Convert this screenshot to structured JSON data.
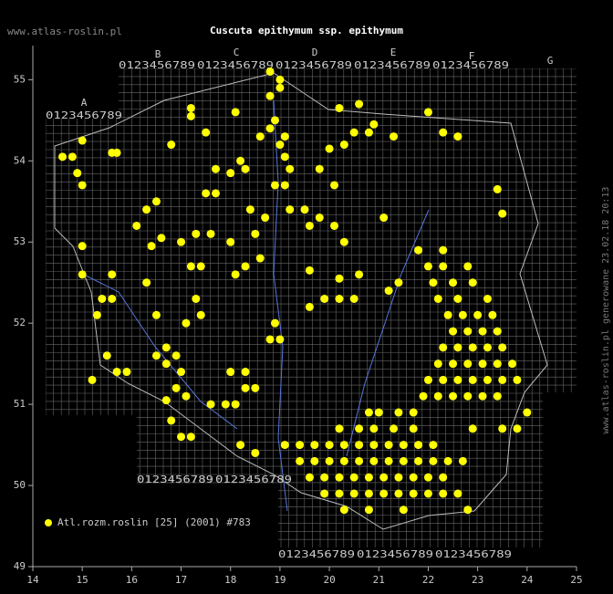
{
  "chart_data": {
    "type": "scatter",
    "title": "Cuscuta epithymum ssp. epithymum",
    "site": "www.atlas-roslin.pl",
    "footer": "www.atlas-roslin.pl generowane 23.02.18 20:13",
    "xlim": [
      14,
      25
    ],
    "ylim": [
      49,
      55.42
    ],
    "xticks": [
      14,
      15,
      16,
      17,
      18,
      19,
      20,
      21,
      22,
      23,
      24,
      25
    ],
    "yticks": [
      49,
      50,
      51,
      52,
      53,
      54,
      55
    ],
    "grid_letters": [
      "A",
      "B",
      "C",
      "D",
      "E",
      "F",
      "G"
    ],
    "grid_digits": "0123456789",
    "x": [
      14.6,
      14.8,
      15.0,
      14.9,
      15.0,
      15.6,
      15.7,
      16.8,
      17.2,
      17.2,
      17.5,
      18.1,
      18.2,
      18.6,
      18.8,
      18.9,
      19.0,
      19.1,
      18.8,
      19.0,
      19.0,
      18.8,
      20.2,
      20.6,
      20.5,
      20.8,
      20.9,
      21.3,
      20.3,
      20.0,
      19.8,
      20.1,
      19.2,
      19.1,
      18.3,
      18.0,
      17.7,
      17.5,
      17.7,
      18.4,
      18.7,
      18.9,
      19.1,
      19.2,
      19.5,
      19.6,
      19.8,
      20.1,
      21.1,
      20.3,
      22.3,
      22.6,
      22.0,
      23.4,
      23.5,
      16.3,
      16.5,
      16.1,
      16.4,
      16.6,
      17.0,
      17.3,
      17.6,
      17.2,
      17.4,
      15.0,
      15.0,
      15.6,
      15.4,
      15.3,
      15.6,
      16.3,
      16.5,
      17.1,
      17.3,
      17.4,
      18.1,
      18.3,
      18.9,
      19.0,
      18.8,
      19.6,
      19.9,
      20.2,
      20.5,
      20.6,
      21.2,
      21.4,
      20.2,
      19.6,
      18.6,
      18.5,
      18.0,
      15.7,
      15.9,
      15.5,
      15.2,
      16.5,
      16.7,
      16.9,
      16.7,
      17.0,
      16.9,
      17.1,
      16.7,
      16.8,
      17.0,
      17.2,
      17.6,
      17.9,
      18.1,
      18.3,
      18.5,
      18.3,
      18.2,
      18.5,
      18.0,
      19.1,
      19.4,
      19.7,
      20.0,
      20.3,
      20.6,
      20.9,
      21.2,
      21.5,
      21.8,
      22.1,
      19.4,
      19.7,
      20.0,
      20.3,
      20.6,
      20.9,
      21.2,
      21.5,
      21.8,
      22.1,
      22.4,
      22.7,
      19.6,
      19.9,
      20.2,
      20.5,
      20.8,
      21.1,
      21.4,
      21.7,
      22.0,
      22.3,
      19.9,
      20.2,
      20.5,
      20.8,
      21.1,
      21.4,
      21.7,
      22.0,
      22.3,
      22.6,
      20.3,
      20.8,
      21.5,
      22.8,
      20.2,
      20.6,
      20.9,
      21.3,
      21.7,
      20.8,
      21.0,
      21.4,
      21.7,
      21.9,
      22.2,
      22.5,
      22.8,
      23.1,
      23.4,
      22.0,
      22.3,
      22.6,
      22.9,
      23.2,
      23.5,
      23.8,
      22.2,
      22.5,
      22.8,
      23.1,
      23.4,
      23.7,
      22.3,
      22.6,
      22.9,
      23.2,
      23.5,
      22.5,
      22.8,
      23.1,
      23.4,
      22.4,
      22.7,
      23.0,
      23.3,
      22.2,
      22.6,
      23.2,
      22.1,
      22.5,
      22.9,
      22.0,
      22.3,
      22.8,
      21.8,
      22.3,
      22.9,
      23.5,
      23.8,
      24.0
    ],
    "series": [
      {
        "name": "Atl.rozm.roslin [25] (2001) #783",
        "color": "#ffff00",
        "values": [
          54.05,
          54.05,
          54.25,
          53.85,
          53.7,
          54.1,
          54.1,
          54.2,
          54.65,
          54.55,
          54.35,
          54.6,
          54.0,
          54.3,
          54.4,
          54.5,
          54.2,
          54.3,
          54.8,
          55.0,
          54.9,
          55.1,
          54.65,
          54.7,
          54.35,
          54.35,
          54.45,
          54.3,
          54.2,
          54.15,
          53.9,
          53.7,
          53.9,
          54.05,
          53.9,
          53.85,
          53.9,
          53.6,
          53.6,
          53.4,
          53.3,
          53.7,
          53.7,
          53.4,
          53.4,
          53.2,
          53.3,
          53.2,
          53.3,
          53.0,
          54.35,
          54.3,
          54.6,
          53.65,
          53.35,
          53.4,
          53.5,
          53.2,
          52.95,
          53.05,
          53.0,
          53.1,
          53.1,
          52.7,
          52.7,
          52.95,
          52.6,
          52.6,
          52.3,
          52.1,
          52.3,
          52.5,
          52.1,
          52.0,
          52.3,
          52.1,
          52.6,
          52.7,
          52.0,
          51.8,
          51.8,
          52.2,
          52.3,
          52.3,
          52.3,
          52.6,
          52.4,
          52.5,
          52.55,
          52.65,
          52.8,
          53.1,
          53.0,
          51.4,
          51.4,
          51.6,
          51.3,
          51.6,
          51.7,
          51.6,
          51.5,
          51.4,
          51.2,
          51.1,
          51.05,
          50.8,
          50.6,
          50.6,
          51.0,
          51.0,
          51.0,
          51.4,
          51.2,
          51.2,
          50.5,
          50.4,
          51.4,
          50.5,
          50.5,
          50.5,
          50.5,
          50.5,
          50.5,
          50.5,
          50.5,
          50.5,
          50.5,
          50.5,
          50.3,
          50.3,
          50.3,
          50.3,
          50.3,
          50.3,
          50.3,
          50.3,
          50.3,
          50.3,
          50.3,
          50.3,
          50.1,
          50.1,
          50.1,
          50.1,
          50.1,
          50.1,
          50.1,
          50.1,
          50.1,
          50.1,
          49.9,
          49.9,
          49.9,
          49.9,
          49.9,
          49.9,
          49.9,
          49.9,
          49.9,
          49.9,
          49.7,
          49.7,
          49.7,
          49.7,
          50.7,
          50.7,
          50.7,
          50.7,
          50.7,
          50.9,
          50.9,
          50.9,
          50.9,
          51.1,
          51.1,
          51.1,
          51.1,
          51.1,
          51.1,
          51.3,
          51.3,
          51.3,
          51.3,
          51.3,
          51.3,
          51.3,
          51.5,
          51.5,
          51.5,
          51.5,
          51.5,
          51.5,
          51.7,
          51.7,
          51.7,
          51.7,
          51.7,
          51.9,
          51.9,
          51.9,
          51.9,
          52.1,
          52.1,
          52.1,
          52.1,
          52.3,
          52.3,
          52.3,
          52.5,
          52.5,
          52.5,
          52.7,
          52.7,
          52.7,
          52.9,
          52.9,
          50.7,
          50.7,
          50.7,
          50.9
        ]
      }
    ]
  }
}
